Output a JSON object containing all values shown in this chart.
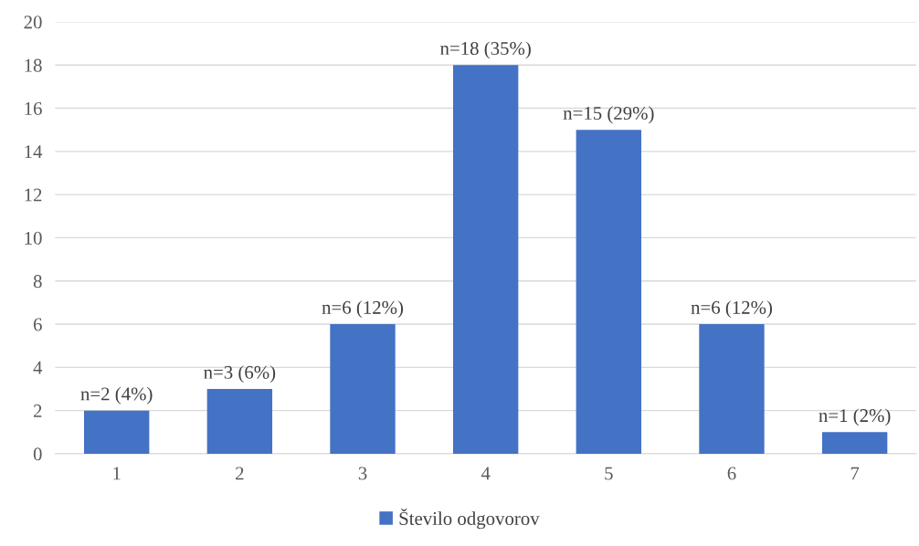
{
  "chart_data": {
    "type": "bar",
    "categories": [
      "1",
      "2",
      "3",
      "4",
      "5",
      "6",
      "7"
    ],
    "series": [
      {
        "name": "Število odgovorov",
        "color": "#4472c4",
        "values": [
          2,
          3,
          6,
          18,
          15,
          6,
          1
        ],
        "value_labels": [
          "n=2 (4%)",
          "n=3 (6%)",
          "n=6 (12%)",
          "n=18 (35%)",
          "n=15 (29%)",
          "n=6 (12%)",
          "n=1 (2%)"
        ]
      }
    ],
    "ylim": [
      0,
      20
    ],
    "yticks": [
      0,
      2,
      4,
      6,
      8,
      10,
      12,
      14,
      16,
      18,
      20
    ],
    "grid": "y",
    "legend": "bottom"
  }
}
